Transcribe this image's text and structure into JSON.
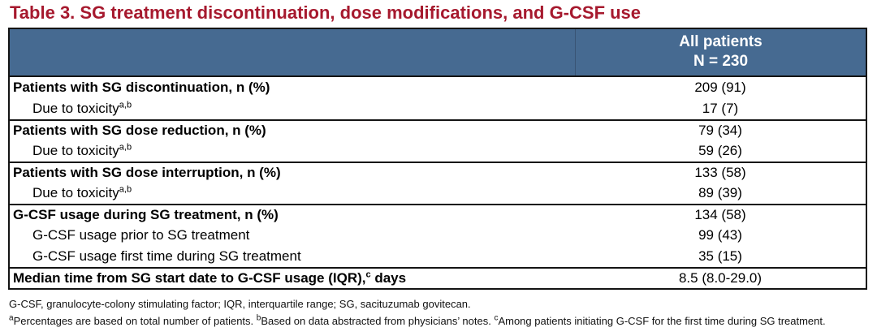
{
  "title": "Table 3. SG treatment discontinuation, dose modifications, and G-CSF use",
  "colors": {
    "title_red": "#A6192E",
    "header_bg": "#466A91",
    "header_text": "#FFFFFF",
    "border": "#141414"
  },
  "table": {
    "header": {
      "col_title": "All patients",
      "col_subtitle": "N = 230"
    },
    "rows": [
      {
        "label": "Patients with SG discontinuation, n (%)",
        "sup": "",
        "label_after": "",
        "value": "209 (91)",
        "bold": true,
        "indent": false,
        "group_start": false
      },
      {
        "label": "Due to toxicity",
        "sup": "a,b",
        "label_after": "",
        "value": "17 (7)",
        "bold": false,
        "indent": true,
        "group_start": false
      },
      {
        "label": "Patients with SG dose reduction, n (%)",
        "sup": "",
        "label_after": "",
        "value": "79 (34)",
        "bold": true,
        "indent": false,
        "group_start": true
      },
      {
        "label": "Due to toxicity",
        "sup": "a,b",
        "label_after": "",
        "value": "59 (26)",
        "bold": false,
        "indent": true,
        "group_start": false
      },
      {
        "label": "Patients with SG dose interruption, n (%)",
        "sup": "",
        "label_after": "",
        "value": "133 (58)",
        "bold": true,
        "indent": false,
        "group_start": true
      },
      {
        "label": "Due to toxicity",
        "sup": "a,b",
        "label_after": "",
        "value": "89 (39)",
        "bold": false,
        "indent": true,
        "group_start": false
      },
      {
        "label": "G-CSF usage during SG treatment, n (%)",
        "sup": "",
        "label_after": "",
        "value": "134 (58)",
        "bold": true,
        "indent": false,
        "group_start": true
      },
      {
        "label": "G-CSF usage prior to SG treatment",
        "sup": "",
        "label_after": "",
        "value": "99 (43)",
        "bold": false,
        "indent": true,
        "group_start": false
      },
      {
        "label": "G-CSF usage first time during SG treatment",
        "sup": "",
        "label_after": "",
        "value": "35 (15)",
        "bold": false,
        "indent": true,
        "group_start": false
      },
      {
        "label": "Median time from SG start date to G-CSF usage (IQR),",
        "sup": "c",
        "label_after": " days",
        "value": "8.5 (8.0-29.0)",
        "bold": true,
        "indent": false,
        "group_start": true
      }
    ]
  },
  "footnotes": {
    "abbreviations": "G-CSF, granulocyte-colony stimulating factor; IQR, interquartile range; SG, sacituzumab govitecan.",
    "superscript_notes": [
      {
        "sup": "a",
        "text": "Percentages are based on total number of patients. "
      },
      {
        "sup": "b",
        "text": "Based on data abstracted from physicians’ notes. "
      },
      {
        "sup": "c",
        "text": "Among patients initiating G-CSF for the first time during SG treatment."
      }
    ]
  }
}
